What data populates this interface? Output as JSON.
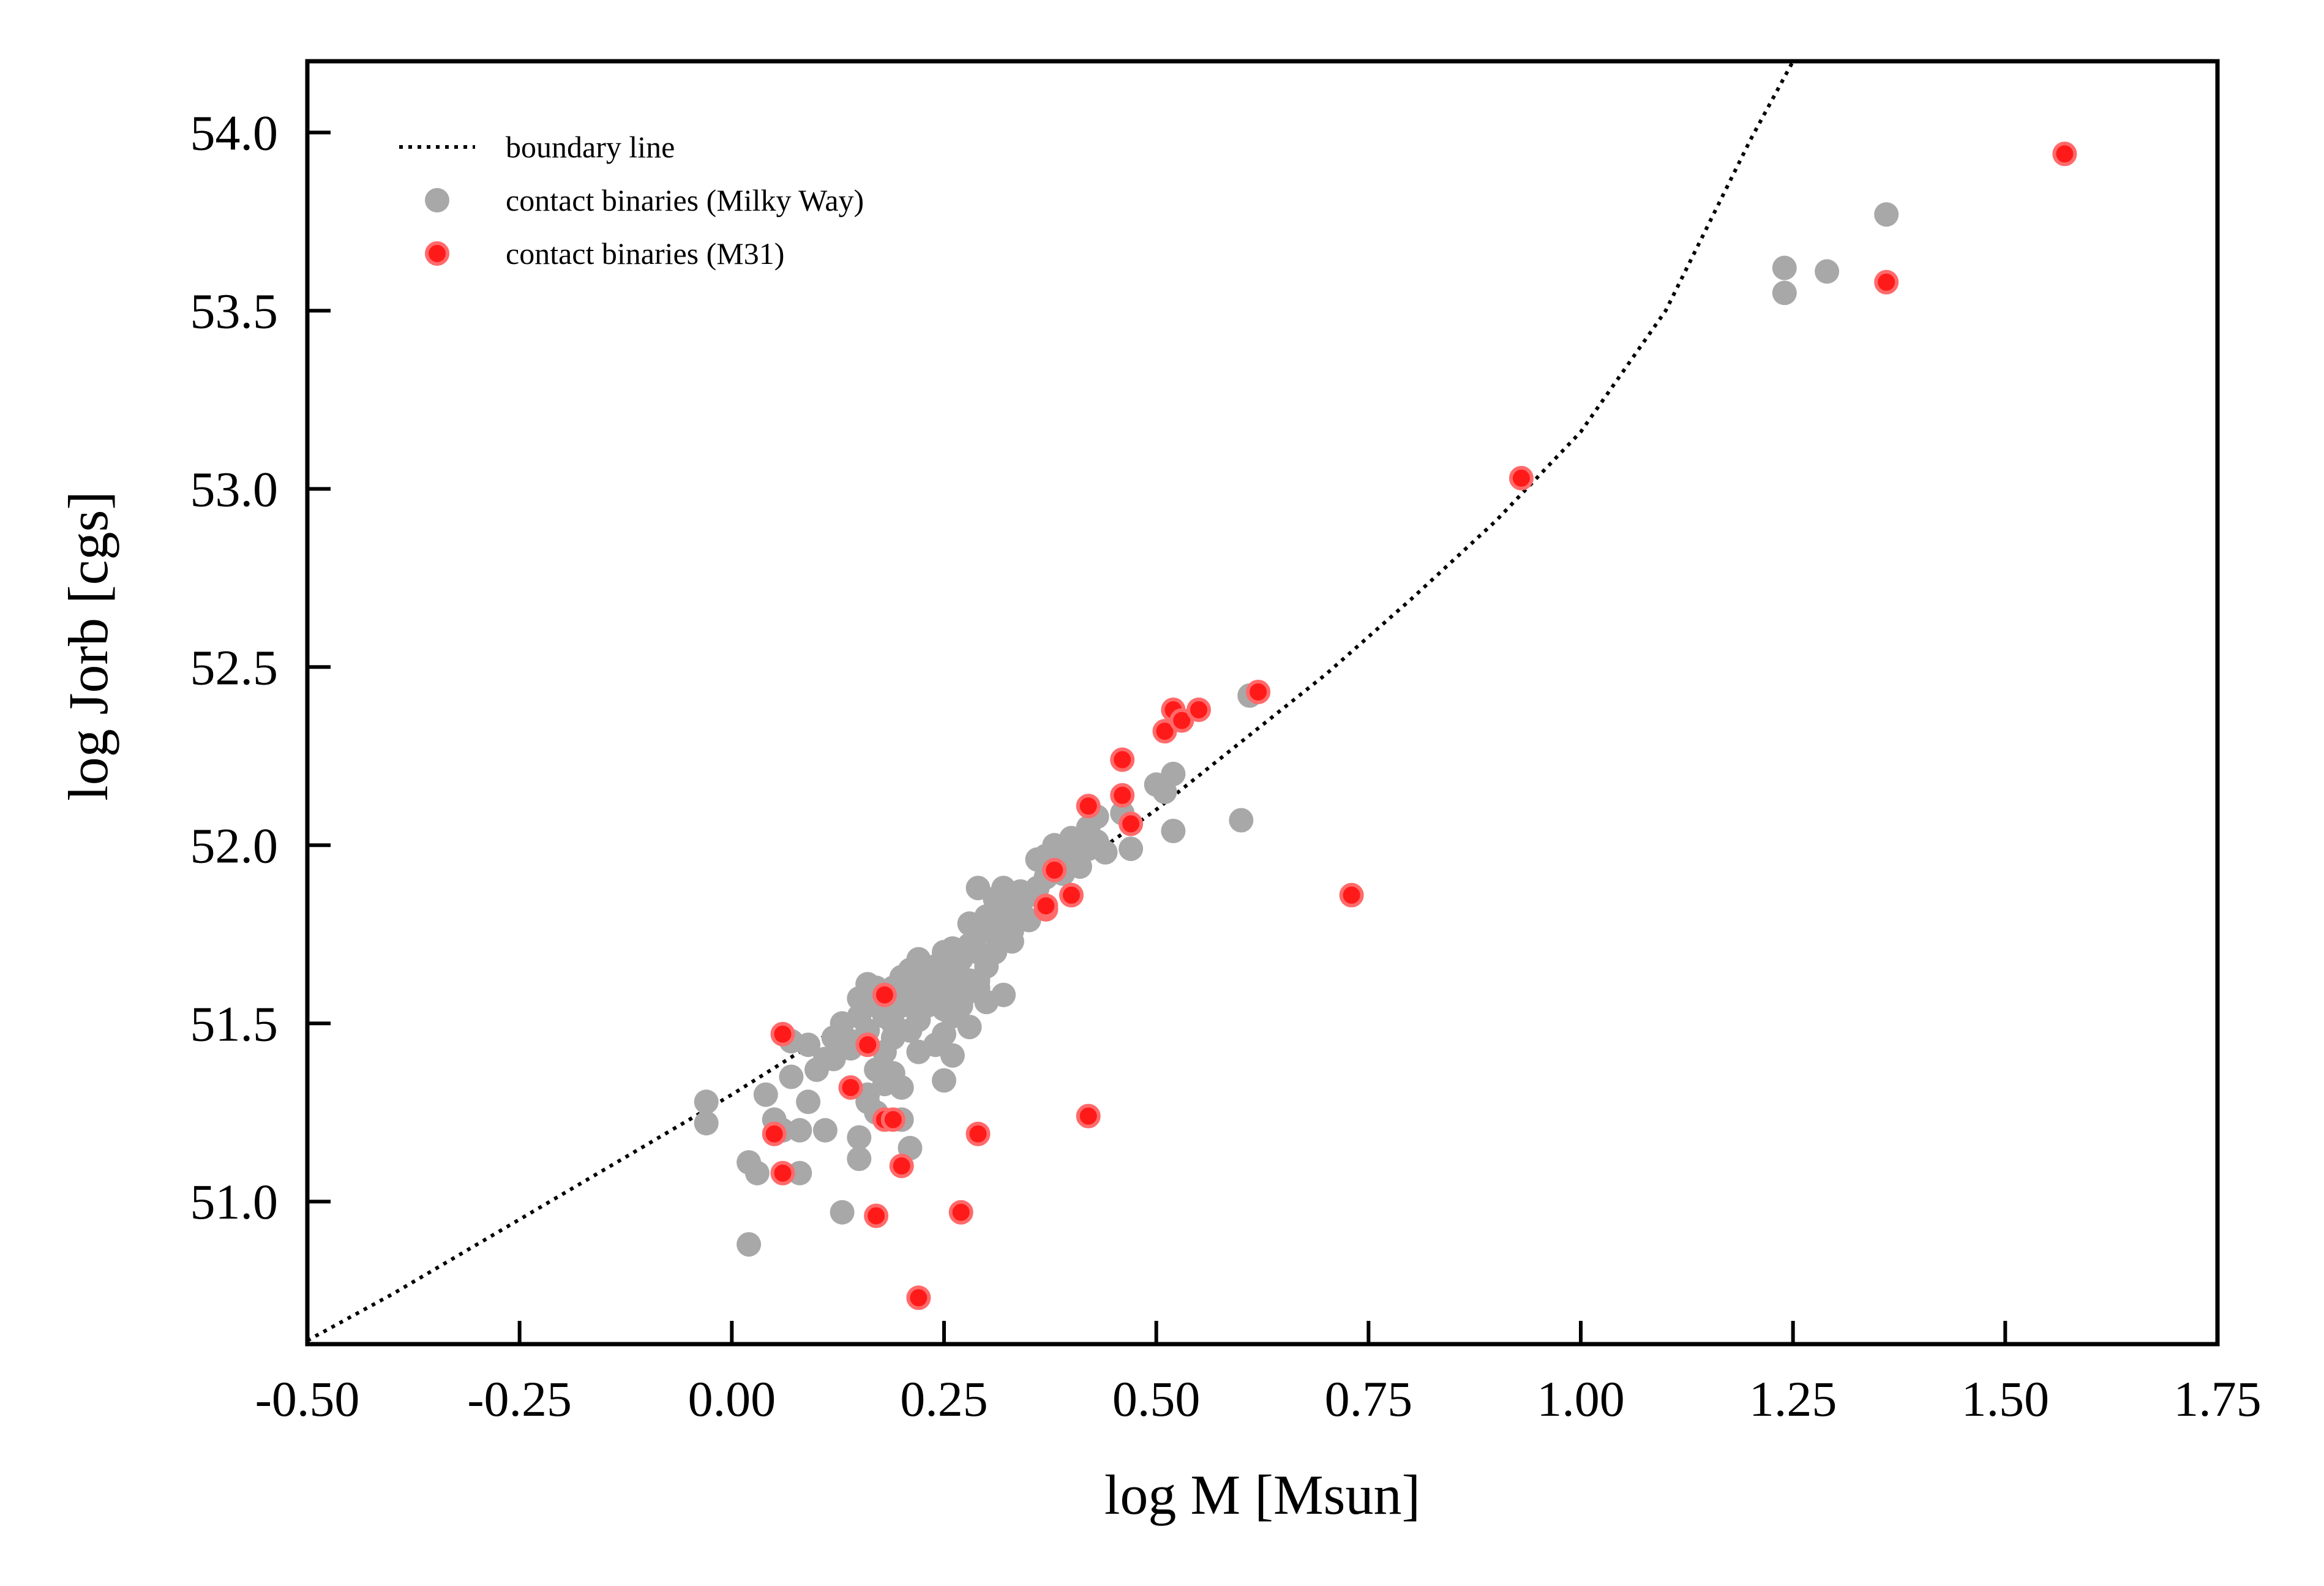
{
  "chart_data": {
    "type": "scatter",
    "title": "",
    "xlabel": "log M [Msun]",
    "ylabel": "log Jorb [cgs]",
    "xlim": [
      -0.5,
      1.75
    ],
    "ylim": [
      50.6,
      54.2
    ],
    "xticks": [
      -0.5,
      -0.25,
      0.0,
      0.25,
      0.5,
      0.75,
      1.0,
      1.25,
      1.5,
      1.75
    ],
    "xtick_labels": [
      "-0.50",
      "-0.25",
      "0.00",
      "0.25",
      "0.50",
      "0.75",
      "1.00",
      "1.25",
      "1.50",
      "1.75"
    ],
    "yticks": [
      51.0,
      51.5,
      52.0,
      52.5,
      53.0,
      53.5,
      54.0
    ],
    "ytick_labels": [
      "51.0",
      "51.5",
      "52.0",
      "52.5",
      "53.0",
      "53.5",
      "54.0"
    ],
    "grid": false,
    "legend_position": "top-left",
    "legend": [
      {
        "label": "boundary line",
        "style": "dotted-line"
      },
      {
        "label": "contact binaries (Milky Way)",
        "style": "marker"
      },
      {
        "label": "contact binaries (M31)",
        "style": "marker"
      }
    ],
    "colors": {
      "boundary": "#000000",
      "milky_way": "#a8a8a8",
      "m31": "#ff1a1a",
      "m31_edge": "#ff6a6a"
    },
    "boundary_line": {
      "name": "boundary line",
      "x": [
        -0.5,
        -0.4,
        -0.3,
        -0.2,
        -0.1,
        0.0,
        0.1,
        0.2,
        0.3,
        0.4,
        0.5,
        0.6,
        0.7,
        0.8,
        0.9,
        1.0,
        1.1,
        1.2,
        1.25
      ],
      "y": [
        50.61,
        50.74,
        50.88,
        51.02,
        51.16,
        51.3,
        51.45,
        51.6,
        51.76,
        51.93,
        52.1,
        52.29,
        52.48,
        52.69,
        52.91,
        53.16,
        53.5,
        53.98,
        54.2
      ]
    },
    "series": [
      {
        "name": "contact binaries (Milky Way)",
        "x": [
          -0.03,
          -0.03,
          0.02,
          0.02,
          0.03,
          0.04,
          0.05,
          0.06,
          0.07,
          0.07,
          0.08,
          0.08,
          0.09,
          0.1,
          0.11,
          0.12,
          0.13,
          0.14,
          0.15,
          0.15,
          0.16,
          0.17,
          0.18,
          0.19,
          0.2,
          0.2,
          0.21,
          0.22,
          0.25,
          0.26,
          0.28,
          0.3,
          0.32,
          0.33,
          0.09,
          0.11,
          0.12,
          0.13,
          0.14,
          0.15,
          0.15,
          0.16,
          0.16,
          0.17,
          0.17,
          0.18,
          0.18,
          0.19,
          0.19,
          0.2,
          0.2,
          0.21,
          0.21,
          0.22,
          0.22,
          0.23,
          0.23,
          0.24,
          0.24,
          0.25,
          0.25,
          0.26,
          0.26,
          0.27,
          0.27,
          0.28,
          0.28,
          0.29,
          0.29,
          0.3,
          0.3,
          0.31,
          0.31,
          0.32,
          0.32,
          0.33,
          0.33,
          0.34,
          0.34,
          0.35,
          0.35,
          0.36,
          0.36,
          0.37,
          0.37,
          0.38,
          0.38,
          0.39,
          0.39,
          0.4,
          0.4,
          0.41,
          0.41,
          0.42,
          0.42,
          0.43,
          0.43,
          0.44,
          0.16,
          0.17,
          0.18,
          0.19,
          0.21,
          0.22,
          0.23,
          0.24,
          0.25,
          0.26,
          0.27,
          0.28,
          0.29,
          0.24,
          0.25,
          0.26,
          0.27,
          0.28,
          0.29,
          0.3,
          0.31,
          0.32,
          0.46,
          0.47,
          0.5,
          0.51,
          0.52,
          0.52,
          0.6,
          0.61,
          1.24,
          1.24,
          1.29,
          1.36
        ],
        "y": [
          51.28,
          51.22,
          50.88,
          51.11,
          51.08,
          51.3,
          51.23,
          51.2,
          51.35,
          51.45,
          51.08,
          51.2,
          51.28,
          51.37,
          51.2,
          51.4,
          50.97,
          51.45,
          51.12,
          51.18,
          51.28,
          51.25,
          51.33,
          51.36,
          51.32,
          51.23,
          51.15,
          51.42,
          51.34,
          51.41,
          51.49,
          51.56,
          51.58,
          51.73,
          51.44,
          51.4,
          51.46,
          51.5,
          51.43,
          51.57,
          51.52,
          51.61,
          51.48,
          51.55,
          51.6,
          51.52,
          51.58,
          51.6,
          51.5,
          51.55,
          51.63,
          51.57,
          51.65,
          51.6,
          51.68,
          51.56,
          51.63,
          51.66,
          51.6,
          51.7,
          51.62,
          51.64,
          51.71,
          51.68,
          51.62,
          51.72,
          51.78,
          51.7,
          51.88,
          51.76,
          51.8,
          51.82,
          51.85,
          51.78,
          51.88,
          51.76,
          51.84,
          51.82,
          51.87,
          51.86,
          51.79,
          51.96,
          51.88,
          51.97,
          51.91,
          51.95,
          52.0,
          51.98,
          51.92,
          52.02,
          51.96,
          52.0,
          51.94,
          52.05,
          51.99,
          52.01,
          52.08,
          51.98,
          51.3,
          51.37,
          51.42,
          51.46,
          51.48,
          51.51,
          51.55,
          51.58,
          51.54,
          51.6,
          51.57,
          51.62,
          51.6,
          51.44,
          51.47,
          51.52,
          51.55,
          51.59,
          51.62,
          51.66,
          51.7,
          51.74,
          52.09,
          51.99,
          52.17,
          52.15,
          52.2,
          52.04,
          52.07,
          52.42,
          53.62,
          53.55,
          53.61,
          53.77
        ]
      },
      {
        "name": "contact binaries (M31)",
        "x": [
          0.05,
          0.06,
          0.06,
          0.14,
          0.16,
          0.17,
          0.18,
          0.18,
          0.19,
          0.2,
          0.22,
          0.27,
          0.29,
          0.37,
          0.37,
          0.38,
          0.4,
          0.42,
          0.42,
          0.46,
          0.46,
          0.47,
          0.51,
          0.52,
          0.53,
          0.55,
          0.62,
          0.73,
          0.93,
          1.36,
          1.57
        ],
        "y": [
          51.19,
          51.47,
          51.08,
          51.32,
          51.44,
          50.96,
          51.58,
          51.23,
          51.23,
          51.1,
          50.73,
          50.97,
          51.19,
          51.82,
          51.83,
          51.93,
          51.86,
          52.11,
          51.24,
          52.24,
          52.14,
          52.06,
          52.32,
          52.38,
          52.35,
          52.38,
          52.43,
          51.86,
          53.03,
          53.58,
          53.94
        ]
      }
    ]
  }
}
